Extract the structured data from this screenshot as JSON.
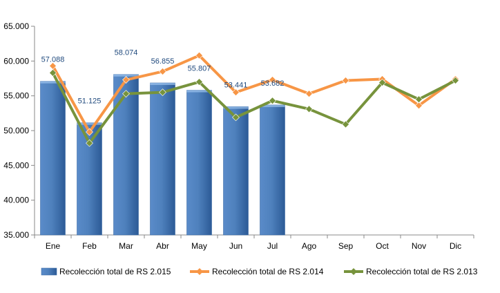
{
  "chart_data": {
    "type": "bar",
    "categories": [
      "Ene",
      "Feb",
      "Mar",
      "Abr",
      "May",
      "Jun",
      "Jul",
      "Ago",
      "Sep",
      "Oct",
      "Nov",
      "Dic"
    ],
    "ylim": [
      35000,
      65000
    ],
    "ytick_values": [
      35000,
      40000,
      45000,
      50000,
      55000,
      60000,
      65000
    ],
    "ytick_labels": [
      "35.000",
      "40.000",
      "45.000",
      "50.000",
      "55.000",
      "60.000",
      "65.000"
    ],
    "grid": false,
    "legend_position": "bottom",
    "series": [
      {
        "name": "Recolección total de RS 2.015",
        "type": "bar",
        "color": "#4f81bd",
        "values": [
          57088,
          51125,
          58074,
          56855,
          55807,
          53441,
          53682,
          null,
          null,
          null,
          null,
          null
        ],
        "data_labels": [
          "57.088",
          "51.125",
          "58.074",
          "56.855",
          "55.807",
          "53.441",
          "53.682"
        ]
      },
      {
        "name": "Recolección total de RS 2.014",
        "type": "line",
        "color": "#f79646",
        "values": [
          59300,
          49800,
          57300,
          58500,
          60800,
          55500,
          57300,
          55300,
          57200,
          57400,
          53600,
          57400
        ]
      },
      {
        "name": "Recolección total de RS 2.013",
        "type": "line",
        "color": "#77933c",
        "values": [
          58300,
          48200,
          55300,
          55500,
          57000,
          51900,
          54300,
          53100,
          50900,
          56900,
          54500,
          57200
        ]
      }
    ]
  }
}
